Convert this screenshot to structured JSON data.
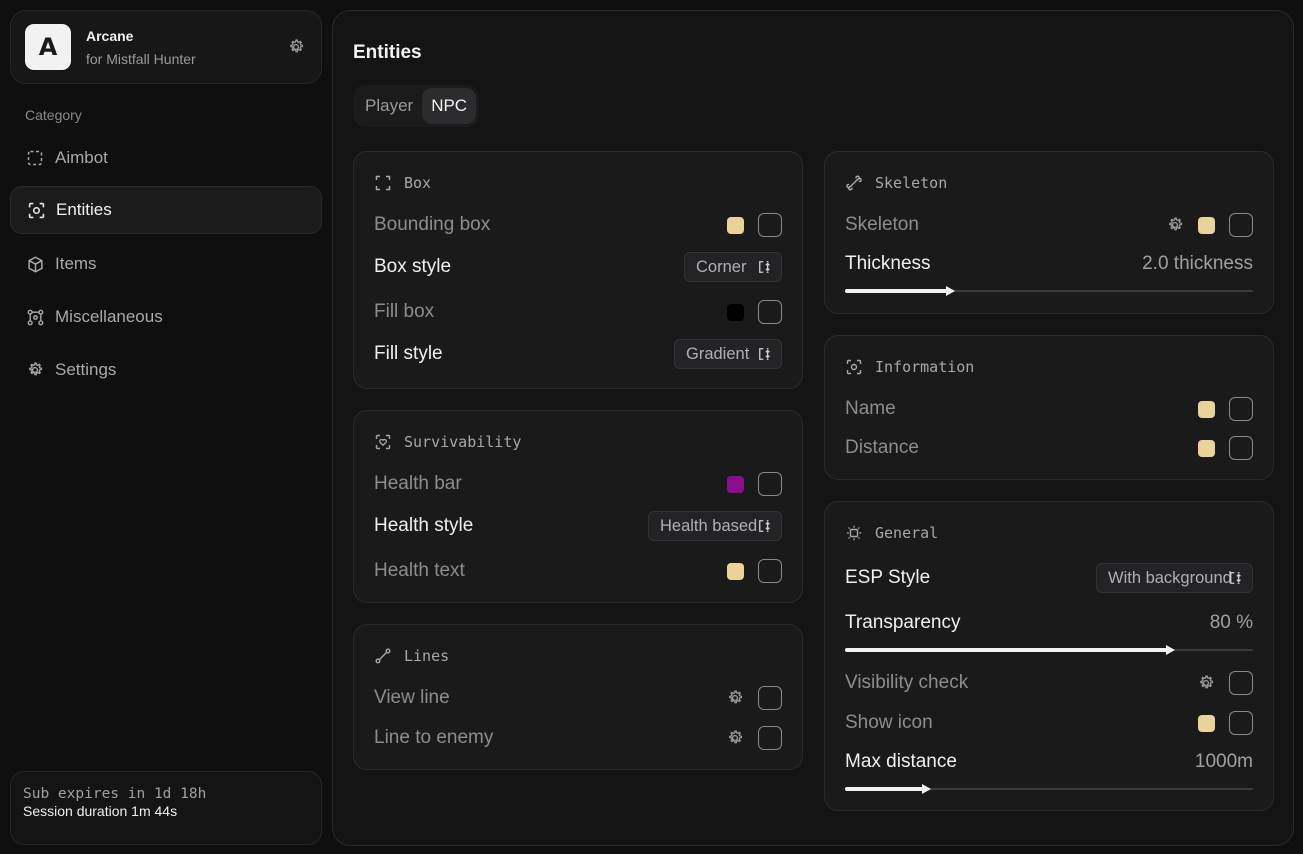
{
  "brand": {
    "logo_letter": "A",
    "title": "Arcane",
    "subtitle": "for Mistfall Hunter"
  },
  "sidebar": {
    "category_label": "Category",
    "items": [
      {
        "label": "Aimbot",
        "icon": "crosshair-dashed-icon",
        "active": false
      },
      {
        "label": "Entities",
        "icon": "scan-face-icon",
        "active": true
      },
      {
        "label": "Items",
        "icon": "cube-icon",
        "active": false
      },
      {
        "label": "Miscellaneous",
        "icon": "nodes-icon",
        "active": false
      },
      {
        "label": "Settings",
        "icon": "gear-icon",
        "active": false
      }
    ]
  },
  "subscription": {
    "expires": "Sub expires in 1d 18h",
    "session": "Session duration  1m 44s"
  },
  "main": {
    "title": "Entities",
    "tabs": [
      {
        "label": "Player",
        "active": false
      },
      {
        "label": "NPC",
        "active": true
      }
    ]
  },
  "cards": {
    "box": {
      "title": "Box",
      "bounding_box": {
        "label": "Bounding box",
        "color": "#e9d39a"
      },
      "box_style": {
        "label": "Box style",
        "value": "Corner"
      },
      "fill_box": {
        "label": "Fill box",
        "color": "#000000"
      },
      "fill_style": {
        "label": "Fill style",
        "value": "Gradient"
      }
    },
    "survivability": {
      "title": "Survivability",
      "health_bar": {
        "label": "Health bar",
        "color": "#8b0d8b"
      },
      "health_style": {
        "label": "Health style",
        "value": "Health based"
      },
      "health_text": {
        "label": "Health text",
        "color": "#e9d39a"
      }
    },
    "lines": {
      "title": "Lines",
      "view_line": {
        "label": "View line"
      },
      "line_to_enemy": {
        "label": "Line to enemy"
      }
    },
    "skeleton": {
      "title": "Skeleton",
      "skeleton": {
        "label": "Skeleton",
        "color": "#e9d39a"
      },
      "thickness": {
        "label": "Thickness",
        "value_text": "2.0 thickness",
        "fraction": 0.26
      }
    },
    "information": {
      "title": "Information",
      "name": {
        "label": "Name",
        "color": "#e9d39a"
      },
      "distance": {
        "label": "Distance",
        "color": "#e9d39a"
      }
    },
    "general": {
      "title": "General",
      "esp_style": {
        "label": "ESP Style",
        "value": "With background"
      },
      "transparency": {
        "label": "Transparency",
        "value_text": "80 %",
        "fraction": 0.8
      },
      "visibility_check": {
        "label": "Visibility check"
      },
      "show_icon": {
        "label": "Show icon",
        "color": "#e9d39a"
      },
      "max_distance": {
        "label": "Max distance",
        "value_text": "1000m",
        "fraction": 0.2
      }
    }
  }
}
